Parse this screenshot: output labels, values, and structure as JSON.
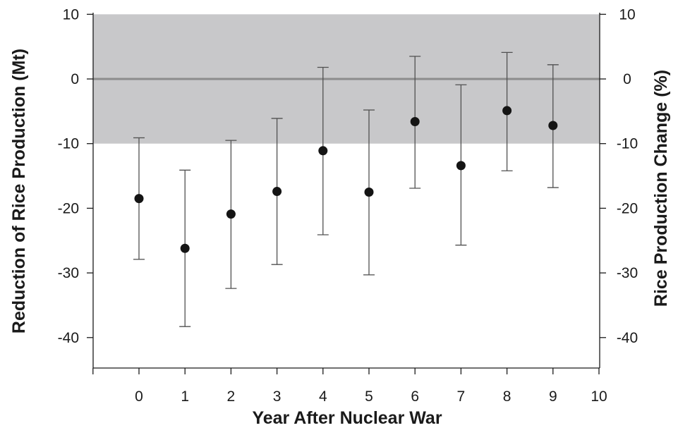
{
  "chart_data": {
    "type": "scatter",
    "subtype": "points-with-error-bars",
    "title": "",
    "xlabel": "Year After Nuclear War",
    "ylabel": "Reduction of Rice Production (Mt)",
    "y2label": "Rice Production Change (%)",
    "xlim": [
      -1,
      10
    ],
    "ylim": [
      -45,
      10
    ],
    "y2lim": [
      -47.5,
      10
    ],
    "xticks": [
      0,
      1,
      2,
      3,
      4,
      5,
      6,
      7,
      8,
      9,
      10
    ],
    "yticks": [
      10,
      0,
      -10,
      -20,
      -30,
      -40
    ],
    "y2ticks": [
      10,
      0,
      -10,
      -20,
      -30,
      -40
    ],
    "shaded_band": {
      "y_from": -10,
      "y_to": 10,
      "color": "#c8c8ca"
    },
    "zero_line": {
      "y": 0,
      "color": "#8c8c8c"
    },
    "grid": false,
    "legend": "none",
    "series": [
      {
        "x": [
          0,
          1,
          2,
          3,
          4,
          5,
          6,
          7,
          8,
          9
        ],
        "y": [
          -18.5,
          -26.2,
          -20.9,
          -17.4,
          -11.1,
          -17.5,
          -6.6,
          -13.4,
          -4.9,
          -7.2
        ],
        "y_low": [
          -27.9,
          -38.3,
          -32.4,
          -28.7,
          -24.1,
          -30.3,
          -16.9,
          -25.7,
          -14.2,
          -16.8
        ],
        "y_high": [
          -9.1,
          -14.1,
          -9.5,
          -6.1,
          1.8,
          -4.8,
          3.5,
          -0.9,
          4.1,
          2.2
        ]
      }
    ],
    "colors": {
      "points": "#141414",
      "error_bars": "#505050",
      "axes": "#1a1a1a"
    }
  }
}
